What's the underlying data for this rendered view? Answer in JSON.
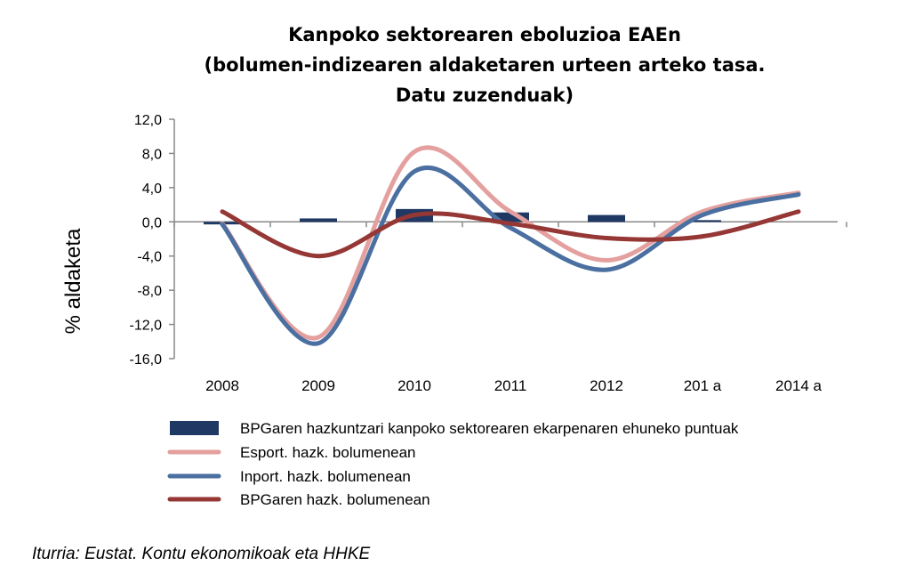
{
  "chart_data": {
    "type": "line",
    "title_lines": [
      "Kanpoko sektorearen eboluzioa EAEn",
      "(bolumen-indizearen aldaketaren urteen arteko tasa.",
      "Datu zuzenduak)"
    ],
    "ylabel": "% aldaketa",
    "xlabel": "",
    "categories": [
      "2008",
      "2009",
      "2010",
      "2011",
      "2012",
      "201 a",
      "2014 a"
    ],
    "ylim": [
      -16,
      12
    ],
    "yticks": [
      12,
      8,
      4,
      0,
      -4,
      -8,
      -12,
      -16
    ],
    "ytick_labels": [
      "12,0",
      "8,0",
      "4,0",
      "0,0",
      "-4,0",
      "-8,0",
      "-12,0",
      "-16,0"
    ],
    "grid": false,
    "legend_position": "bottom",
    "series": [
      {
        "name": "BPGaren hazkuntzari kanpoko sektorearen ekarpenaren ehuneko puntuak",
        "kind": "bar",
        "color": "#1f3864",
        "values": [
          -0.3,
          0.4,
          1.5,
          1.1,
          0.8,
          0.2,
          0.0
        ]
      },
      {
        "name": "Esport. hazk. bolumenean",
        "kind": "line",
        "color": "#e3a09e",
        "values": [
          -0.2,
          -13.5,
          8.2,
          1.2,
          -4.5,
          1.2,
          3.4
        ]
      },
      {
        "name": "Inport. hazk. bolumenean",
        "kind": "line",
        "color": "#4a6fa0",
        "values": [
          -0.3,
          -14.2,
          5.9,
          -0.7,
          -5.6,
          0.8,
          3.2
        ]
      },
      {
        "name": "BPGaren hazk. bolumenean",
        "kind": "line",
        "color": "#953735",
        "values": [
          1.2,
          -4.0,
          0.8,
          -0.2,
          -1.9,
          -1.7,
          1.2
        ]
      }
    ]
  },
  "source": "Iturria: Eustat. Kontu ekonomikoak eta HHKE"
}
